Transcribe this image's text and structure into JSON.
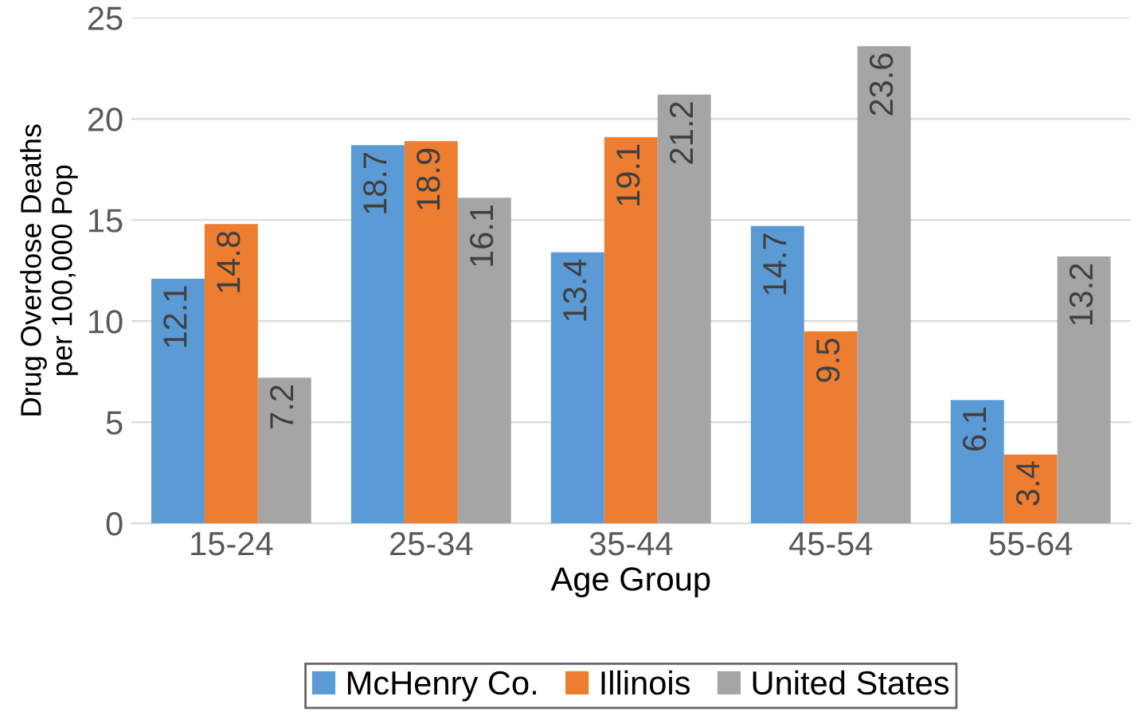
{
  "chart_data": {
    "type": "bar",
    "xlabel": "Age Group",
    "ylabel": "Drug Overdose Deaths\nper 100,000 Pop",
    "categories": [
      "15-24",
      "25-34",
      "35-44",
      "45-54",
      "55-64"
    ],
    "series": [
      {
        "name": "McHenry Co.",
        "color": "#5b9bd5",
        "values": [
          12.1,
          18.7,
          13.4,
          14.7,
          6.1
        ]
      },
      {
        "name": "Illinois",
        "color": "#ed7d31",
        "values": [
          14.8,
          18.9,
          19.1,
          9.5,
          3.4
        ]
      },
      {
        "name": "United States",
        "color": "#a5a5a5",
        "values": [
          7.2,
          16.1,
          21.2,
          23.6,
          13.2
        ]
      }
    ],
    "ylim": [
      0,
      25
    ],
    "yticks": [
      0,
      5,
      10,
      15,
      20,
      25
    ],
    "grid": "y",
    "legend": "bottom",
    "data_labels": true
  }
}
